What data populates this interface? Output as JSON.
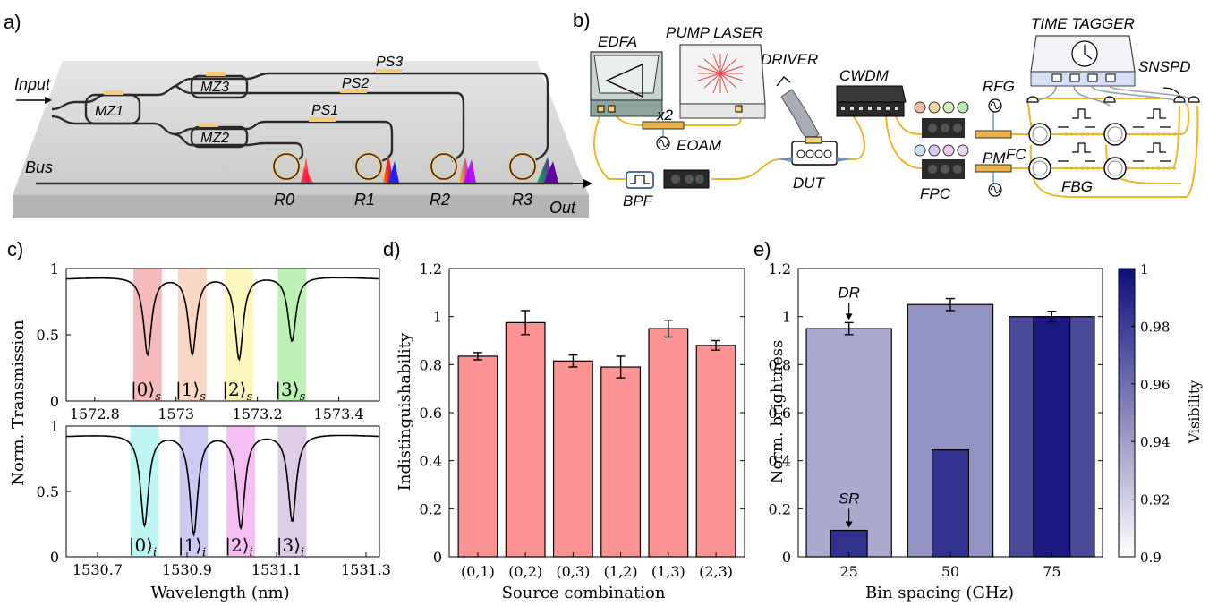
{
  "panels": {
    "a": "a)",
    "b": "b)",
    "c": "c)",
    "d": "d)",
    "e": "e)"
  },
  "panel_a": {
    "input": "Input",
    "bus": "Bus",
    "out": "Out",
    "mz": [
      "MZ1",
      "MZ2",
      "MZ3"
    ],
    "ps": [
      "PS1",
      "PS2",
      "PS3"
    ],
    "rings": [
      "R0",
      "R1",
      "R2",
      "R3"
    ]
  },
  "panel_b": {
    "edfa": "EDFA",
    "pump": "PUMP LASER",
    "driver": "DRIVER",
    "cwdm": "CWDM",
    "time_tagger": "TIME TAGGER",
    "snspd": "SNSPD",
    "rfg": "RFG",
    "x2": "x2",
    "eoam": "EOAM",
    "bpf": "BPF",
    "dut": "DUT",
    "fpc": "FPC",
    "pm": "PM",
    "fc": "FC",
    "fbg": "FBG"
  },
  "chart_data": [
    {
      "type": "line",
      "panel": "c-top",
      "ylabel": "Norm. Transmission",
      "xticks": [
        "1572.8",
        "1573",
        "1573.2",
        "1573.4"
      ],
      "yticks": [
        "0",
        "0.5",
        "1"
      ],
      "xlim": [
        1572.73,
        1573.5
      ],
      "ylim": [
        0,
        1
      ],
      "dips": [
        {
          "x": 1572.93,
          "min": 0.34,
          "label": "|0⟩",
          "sub": "s",
          "color": "#f4a3a3"
        },
        {
          "x": 1573.04,
          "min": 0.34,
          "label": "|1⟩",
          "sub": "s",
          "color": "#f9c9b3"
        },
        {
          "x": 1573.155,
          "min": 0.3,
          "label": "|2⟩",
          "sub": "s",
          "color": "#f9f4a6"
        },
        {
          "x": 1573.285,
          "min": 0.44,
          "label": "|3⟩",
          "sub": "s",
          "color": "#a7ee9c"
        }
      ]
    },
    {
      "type": "line",
      "panel": "c-bottom",
      "xlabel": "Wavelength (nm)",
      "xticks": [
        "1530.7",
        "1530.9",
        "1531.1",
        "1531.3"
      ],
      "yticks": [
        "0",
        "0.5",
        "1"
      ],
      "xlim": [
        1530.63,
        1531.33
      ],
      "ylim": [
        0,
        1
      ],
      "dips": [
        {
          "x": 1530.805,
          "min": 0.23,
          "label": "|0⟩",
          "sub": "i",
          "color": "#a7f3ef"
        },
        {
          "x": 1530.915,
          "min": 0.16,
          "label": "|1⟩",
          "sub": "i",
          "color": "#b9b9f3"
        },
        {
          "x": 1531.02,
          "min": 0.21,
          "label": "|2⟩",
          "sub": "i",
          "color": "#f3a7f0"
        },
        {
          "x": 1531.135,
          "min": 0.26,
          "label": "|3⟩",
          "sub": "i",
          "color": "#d3b9df"
        }
      ]
    },
    {
      "type": "bar",
      "panel": "d",
      "xlabel": "Source combination",
      "ylabel": "Indistinguishability",
      "categories": [
        "(0,1)",
        "(0,2)",
        "(0,3)",
        "(1,2)",
        "(1,3)",
        "(2,3)"
      ],
      "values": [
        0.835,
        0.975,
        0.815,
        0.79,
        0.95,
        0.88
      ],
      "errors": [
        0.015,
        0.05,
        0.025,
        0.045,
        0.035,
        0.02
      ],
      "ylim": [
        0,
        1.2
      ],
      "yticks": [
        "0",
        "0.2",
        "0.4",
        "0.6",
        "0.8",
        "1",
        "1.2"
      ],
      "color": "#fb9393"
    },
    {
      "type": "bar",
      "panel": "e",
      "xlabel": "Bin spacing (GHz)",
      "ylabel": "Norm. brightness",
      "categories": [
        "25",
        "50",
        "75"
      ],
      "series": [
        {
          "values": [
            0.95,
            1.05,
            1.0
          ],
          "errors": [
            0.025,
            0.025,
            0.022
          ],
          "visibility": [
            0.935,
            0.945,
            0.975
          ]
        },
        {
          "values": [
            0.11,
            0.445,
            1.0
          ],
          "visibility": [
            0.985,
            0.985,
            0.995
          ]
        }
      ],
      "annotations": [
        {
          "text": "DR",
          "category": "25"
        },
        {
          "text": "SR",
          "category": "25"
        }
      ],
      "ylim": [
        0,
        1.2
      ],
      "yticks": [
        "0",
        "0.2",
        "0.4",
        "0.6",
        "0.8",
        "1",
        "1.2"
      ],
      "colorbar": {
        "label": "Visibility",
        "min": 0.9,
        "max": 1,
        "ticks": [
          "0.9",
          "0.92",
          "0.94",
          "0.96",
          "0.98",
          "1"
        ],
        "low_color": "#ffffff",
        "high_color": "#0d0d7a"
      }
    }
  ]
}
